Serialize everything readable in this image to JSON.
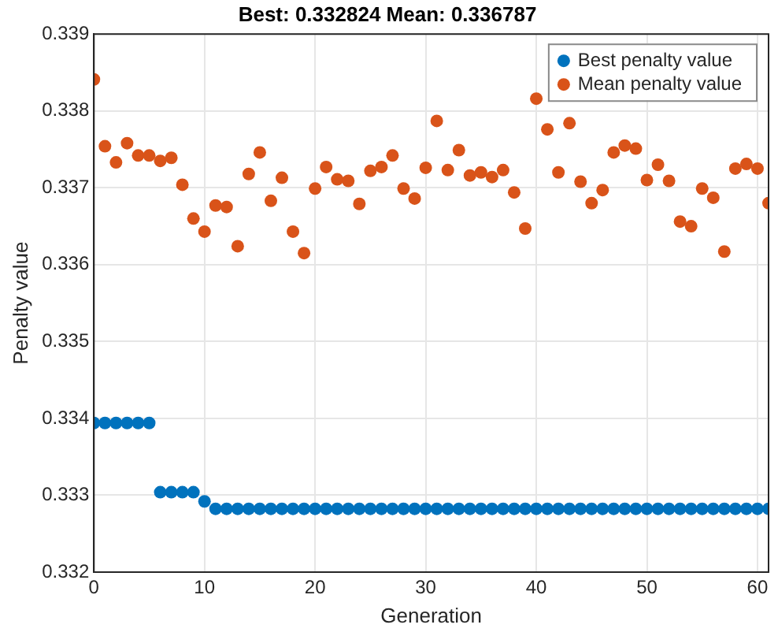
{
  "chart_data": {
    "type": "scatter",
    "title": "Best: 0.332824 Mean: 0.336787",
    "xlabel": "Generation",
    "ylabel": "Penalty value",
    "x": [
      0,
      1,
      2,
      3,
      4,
      5,
      6,
      7,
      8,
      9,
      10,
      11,
      12,
      13,
      14,
      15,
      16,
      17,
      18,
      19,
      20,
      21,
      22,
      23,
      24,
      25,
      26,
      27,
      28,
      29,
      30,
      31,
      32,
      33,
      34,
      35,
      36,
      37,
      38,
      39,
      40,
      41,
      42,
      43,
      44,
      45,
      46,
      47,
      48,
      49,
      50,
      51,
      52,
      53,
      54,
      55,
      56,
      57,
      58,
      59,
      60,
      61
    ],
    "series": [
      {
        "name": "Best penalty value",
        "color": "#0072bd",
        "values": [
          0.33394,
          0.33394,
          0.33394,
          0.33394,
          0.33394,
          0.33394,
          0.33304,
          0.33304,
          0.33304,
          0.33304,
          0.33292,
          0.332824,
          0.332824,
          0.332824,
          0.332824,
          0.332824,
          0.332824,
          0.332824,
          0.332824,
          0.332824,
          0.332824,
          0.332824,
          0.332824,
          0.332824,
          0.332824,
          0.332824,
          0.332824,
          0.332824,
          0.332824,
          0.332824,
          0.332824,
          0.332824,
          0.332824,
          0.332824,
          0.332824,
          0.332824,
          0.332824,
          0.332824,
          0.332824,
          0.332824,
          0.332824,
          0.332824,
          0.332824,
          0.332824,
          0.332824,
          0.332824,
          0.332824,
          0.332824,
          0.332824,
          0.332824,
          0.332824,
          0.332824,
          0.332824,
          0.332824,
          0.332824,
          0.332824,
          0.332824,
          0.332824,
          0.332824,
          0.332824,
          0.332824,
          0.332824
        ]
      },
      {
        "name": "Mean penalty value",
        "color": "#d95319",
        "values": [
          0.33841,
          0.33754,
          0.33733,
          0.33758,
          0.33742,
          0.33742,
          0.33735,
          0.33739,
          0.33704,
          0.3366,
          0.33643,
          0.33677,
          0.33675,
          0.33624,
          0.33718,
          0.33746,
          0.33683,
          0.33713,
          0.33643,
          0.33615,
          0.33699,
          0.33727,
          0.33711,
          0.33709,
          0.33679,
          0.33722,
          0.33727,
          0.33742,
          0.33699,
          0.33686,
          0.33726,
          0.33787,
          0.33723,
          0.33749,
          0.33716,
          0.3372,
          0.33714,
          0.33723,
          0.33694,
          0.33647,
          0.33816,
          0.33776,
          0.3372,
          0.33784,
          0.33708,
          0.3368,
          0.33697,
          0.33746,
          0.33755,
          0.33751,
          0.3371,
          0.3373,
          0.33709,
          0.33656,
          0.3365,
          0.33699,
          0.33687,
          0.33617,
          0.33725,
          0.33731,
          0.33725,
          0.3368
        ]
      }
    ],
    "xlim": [
      0,
      61
    ],
    "xticks": [
      0,
      10,
      20,
      30,
      40,
      50,
      60
    ],
    "ylim": [
      0.332,
      0.339
    ],
    "yticks": [
      0.332,
      0.333,
      0.334,
      0.335,
      0.336,
      0.337,
      0.338,
      0.339
    ],
    "grid": true,
    "legend": "top right",
    "marker": "circle"
  }
}
